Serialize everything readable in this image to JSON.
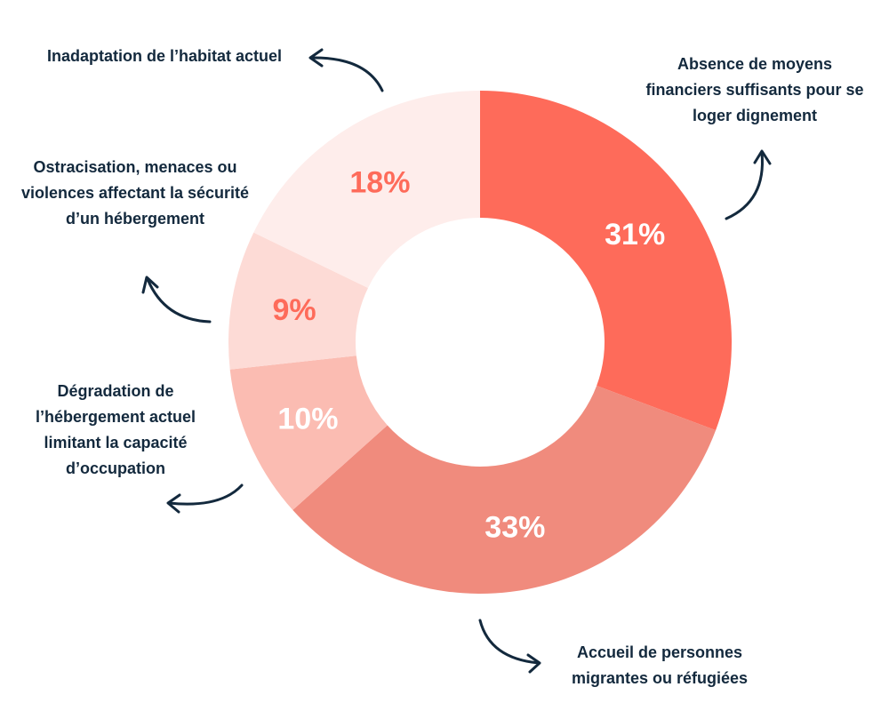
{
  "chart_data": {
    "type": "pie",
    "variant": "donut",
    "title": "",
    "slices": [
      {
        "label": "Absence de moyens financiers suffisants pour se loger dignement",
        "value": 31,
        "display": "31%",
        "color": "#fe6b5a",
        "text_color": "#ffffff"
      },
      {
        "label": "Accueil de personnes migrantes ou réfugiées",
        "value": 33,
        "display": "33%",
        "color": "#f08b7d",
        "text_color": "#ffffff"
      },
      {
        "label": "Dégradation de l’hébergement actuel limitant la capacité d’occupation",
        "value": 10,
        "display": "10%",
        "color": "#fbbcb2",
        "text_color": "#ffffff"
      },
      {
        "label": "Ostracisation, menaces ou violences affectant la sécurité d’un hébergement",
        "value": 9,
        "display": "9%",
        "color": "#fddbd6",
        "text_color": "#fe6b5a"
      },
      {
        "label": "Inadaptation de l’habitat actuel",
        "value": 18,
        "display": "18%",
        "color": "#feedeb",
        "text_color": "#fe6b5a"
      }
    ]
  },
  "labels": {
    "absence": "Absence de moyens financiers suffisants pour se loger dignement",
    "accueil": "Accueil de personnes migrantes ou réfugiées",
    "degradation": "Dégradation de l’hébergement actuel limitant la capacité d’occupation",
    "ostracisation": "Ostracisation, menaces ou violences affectant la sécurité d’un hébergement",
    "inadaptation": "Inadaptation de l’habitat actuel"
  },
  "colors": {
    "text": "#13293d",
    "arrow": "#13293d"
  }
}
